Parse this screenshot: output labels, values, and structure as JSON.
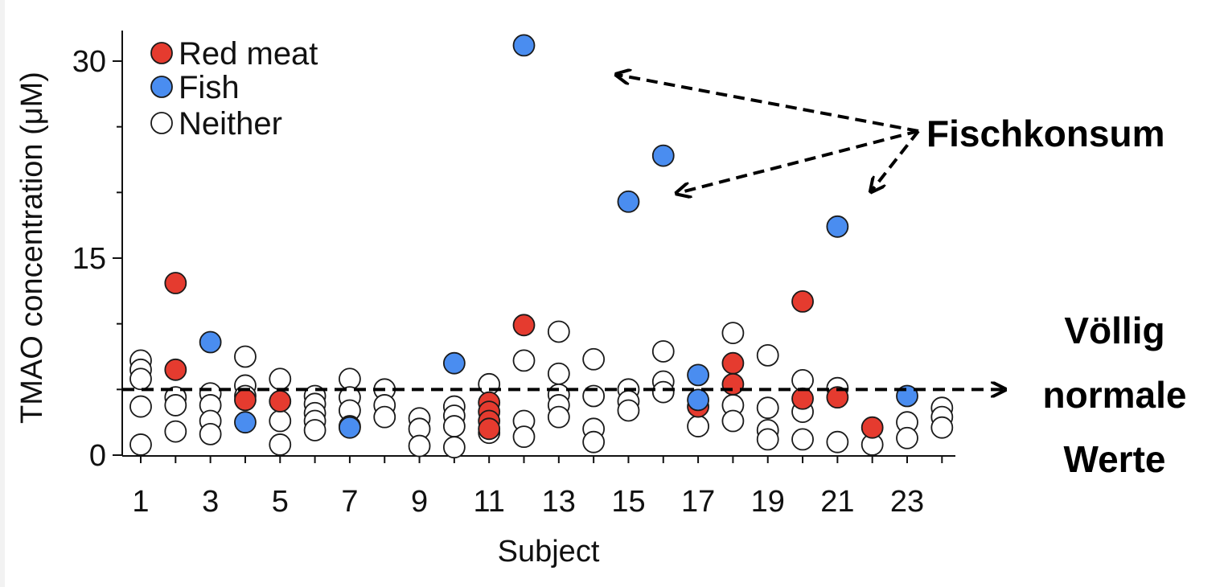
{
  "chart_data": {
    "type": "scatter",
    "title": "",
    "xlabel": "Subject",
    "ylabel": "TMAO concentration (μM)",
    "xlim": [
      0.5,
      24.5
    ],
    "ylim": [
      0,
      32.5
    ],
    "x_ticks": [
      1,
      3,
      5,
      7,
      9,
      11,
      13,
      15,
      17,
      19,
      21,
      23
    ],
    "x_tick_labels": [
      "1",
      "3",
      "5",
      "7",
      "9",
      "11",
      "13",
      "15",
      "17",
      "19",
      "21",
      "23"
    ],
    "y_major_ticks": [
      0,
      15,
      30
    ],
    "y_tick_labels": [
      "0",
      "15",
      "30"
    ],
    "y_minor_ticks": [
      5,
      10,
      20,
      25
    ],
    "legend": [
      {
        "key": "red",
        "label": "Red meat"
      },
      {
        "key": "fish",
        "label": "Fish"
      },
      {
        "key": "neither",
        "label": "Neither"
      }
    ],
    "colors": {
      "red": "#e53b2f",
      "fish": "#4a8df0",
      "neither": "#ffffff",
      "edge": "#1a1a1a"
    },
    "series": [
      {
        "name": "Neither",
        "key": "neither",
        "points": [
          [
            1,
            7.2
          ],
          [
            1,
            6.5
          ],
          [
            1,
            5.8
          ],
          [
            1,
            3.7
          ],
          [
            1,
            0.8
          ],
          [
            2,
            4.4
          ],
          [
            2,
            3.8
          ],
          [
            2,
            1.8
          ],
          [
            3,
            4.7
          ],
          [
            3,
            3.8
          ],
          [
            3,
            2.6
          ],
          [
            3,
            1.6
          ],
          [
            4,
            7.5
          ],
          [
            4,
            5.3
          ],
          [
            4,
            4.5
          ],
          [
            5,
            5.8
          ],
          [
            5,
            2.6
          ],
          [
            5,
            0.8
          ],
          [
            6,
            4.5
          ],
          [
            6,
            3.9
          ],
          [
            6,
            3.2
          ],
          [
            6,
            2.6
          ],
          [
            6,
            1.9
          ],
          [
            7,
            5.8
          ],
          [
            7,
            4.4
          ],
          [
            7,
            3.4
          ],
          [
            7,
            2.2
          ],
          [
            8,
            5.0
          ],
          [
            8,
            3.8
          ],
          [
            8,
            2.9
          ],
          [
            9,
            2.8
          ],
          [
            9,
            2.0
          ],
          [
            9,
            0.7
          ],
          [
            10,
            3.7
          ],
          [
            10,
            3.0
          ],
          [
            10,
            2.2
          ],
          [
            10,
            0.6
          ],
          [
            11,
            5.4
          ],
          [
            11,
            1.7
          ],
          [
            12,
            7.2
          ],
          [
            12,
            2.6
          ],
          [
            12,
            1.4
          ],
          [
            13,
            9.4
          ],
          [
            13,
            6.2
          ],
          [
            13,
            4.6
          ],
          [
            13,
            3.8
          ],
          [
            13,
            2.9
          ],
          [
            14,
            7.3
          ],
          [
            14,
            4.5
          ],
          [
            14,
            2.0
          ],
          [
            14,
            1.0
          ],
          [
            15,
            5.0
          ],
          [
            15,
            4.1
          ],
          [
            15,
            3.4
          ],
          [
            16,
            7.9
          ],
          [
            16,
            5.6
          ],
          [
            16,
            4.8
          ],
          [
            17,
            2.2
          ],
          [
            18,
            9.3
          ],
          [
            18,
            3.8
          ],
          [
            18,
            2.6
          ],
          [
            19,
            7.6
          ],
          [
            19,
            3.6
          ],
          [
            19,
            1.9
          ],
          [
            19,
            1.2
          ],
          [
            20,
            5.7
          ],
          [
            20,
            3.3
          ],
          [
            20,
            1.2
          ],
          [
            21,
            5.1
          ],
          [
            21,
            1.0
          ],
          [
            22,
            0.8
          ],
          [
            23,
            2.5
          ],
          [
            23,
            1.3
          ],
          [
            24,
            3.6
          ],
          [
            24,
            2.9
          ],
          [
            24,
            2.1
          ]
        ]
      },
      {
        "name": "Red meat",
        "key": "red",
        "points": [
          [
            2,
            13.1
          ],
          [
            2,
            6.5
          ],
          [
            4,
            4.2
          ],
          [
            5,
            4.1
          ],
          [
            11,
            4.0
          ],
          [
            11,
            3.3
          ],
          [
            11,
            2.6
          ],
          [
            11,
            2.0
          ],
          [
            12,
            9.9
          ],
          [
            17,
            3.7
          ],
          [
            18,
            7.0
          ],
          [
            18,
            5.4
          ],
          [
            20,
            11.7
          ],
          [
            20,
            4.3
          ],
          [
            21,
            4.4
          ],
          [
            22,
            2.1
          ]
        ]
      },
      {
        "name": "Fish",
        "key": "fish",
        "points": [
          [
            3,
            8.6
          ],
          [
            4,
            2.5
          ],
          [
            7,
            2.1
          ],
          [
            10,
            7.0
          ],
          [
            12,
            31.2
          ],
          [
            15,
            19.3
          ],
          [
            16,
            22.8
          ],
          [
            17,
            6.1
          ],
          [
            17,
            4.2
          ],
          [
            21,
            17.4
          ],
          [
            23,
            4.5
          ]
        ]
      }
    ],
    "annotations": {
      "threshold_line_y": 5.0,
      "threshold_label": [
        "Völlig",
        "normale",
        "Werte"
      ],
      "fish_label": "Fischkonsum"
    }
  }
}
